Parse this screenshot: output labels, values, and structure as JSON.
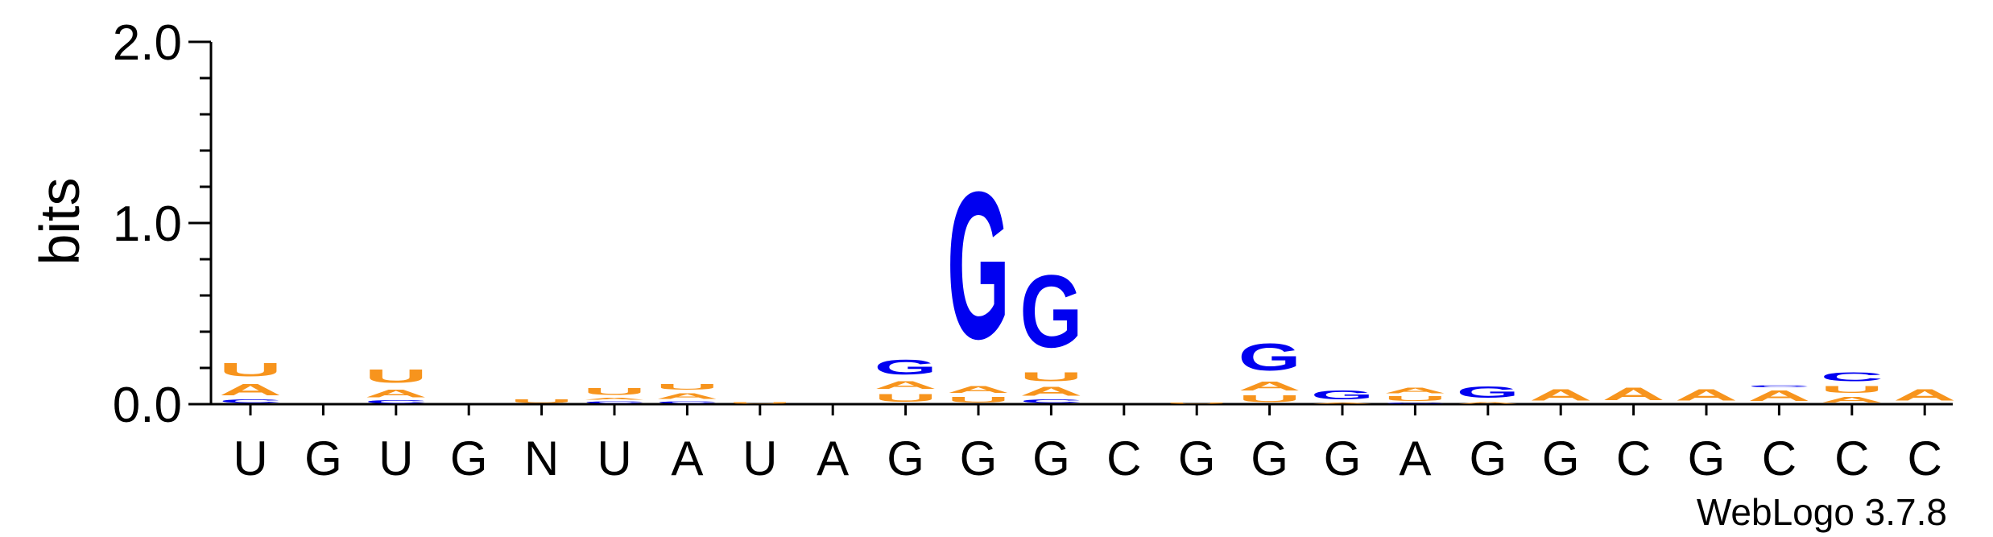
{
  "chart_data": {
    "type": "sequence-logo",
    "ylabel": "bits",
    "ylim": [
      0,
      2.0
    ],
    "yticks": [
      "0.0",
      "1.0",
      "2.0"
    ],
    "credit": "WebLogo 3.7.8",
    "colors": {
      "A": "#f7941d",
      "U": "#f7941d",
      "G": "#0000f0",
      "C": "#0000f0"
    },
    "positions": [
      {
        "label": "U",
        "stack": [
          {
            "base": "C",
            "bits": 0.03
          },
          {
            "base": "A",
            "bits": 0.1
          },
          {
            "base": "U",
            "bits": 0.12
          }
        ]
      },
      {
        "label": "G",
        "stack": []
      },
      {
        "label": "U",
        "stack": [
          {
            "base": "C",
            "bits": 0.025
          },
          {
            "base": "A",
            "bits": 0.07
          },
          {
            "base": "U",
            "bits": 0.12
          }
        ]
      },
      {
        "label": "G",
        "stack": []
      },
      {
        "label": "N",
        "stack": [
          {
            "base": "U",
            "bits": 0.03
          }
        ]
      },
      {
        "label": "U",
        "stack": [
          {
            "base": "C",
            "bits": 0.02
          },
          {
            "base": "A",
            "bits": 0.02
          },
          {
            "base": "U",
            "bits": 0.06
          }
        ]
      },
      {
        "label": "A",
        "stack": [
          {
            "base": "C",
            "bits": 0.02
          },
          {
            "base": "A",
            "bits": 0.05
          },
          {
            "base": "U",
            "bits": 0.05
          }
        ]
      },
      {
        "label": "U",
        "stack": [
          {
            "base": "U",
            "bits": 0.015
          }
        ]
      },
      {
        "label": "A",
        "stack": []
      },
      {
        "label": "G",
        "stack": [
          {
            "base": "U",
            "bits": 0.07
          },
          {
            "base": "A",
            "bits": 0.07
          },
          {
            "base": "G",
            "bits": 0.13
          }
        ]
      },
      {
        "label": "G",
        "stack": [
          {
            "base": "U",
            "bits": 0.05
          },
          {
            "base": "A",
            "bits": 0.06
          },
          {
            "base": "G",
            "bits": 1.3
          }
        ]
      },
      {
        "label": "G",
        "stack": [
          {
            "base": "C",
            "bits": 0.03
          },
          {
            "base": "A",
            "bits": 0.08
          },
          {
            "base": "U",
            "bits": 0.08
          },
          {
            "base": "G",
            "bits": 0.64
          }
        ]
      },
      {
        "label": "C",
        "stack": []
      },
      {
        "label": "G",
        "stack": [
          {
            "base": "U",
            "bits": 0.01
          }
        ]
      },
      {
        "label": "G",
        "stack": [
          {
            "base": "U",
            "bits": 0.06
          },
          {
            "base": "A",
            "bits": 0.08
          },
          {
            "base": "G",
            "bits": 0.24
          }
        ]
      },
      {
        "label": "G",
        "stack": [
          {
            "base": "A",
            "bits": 0.01
          },
          {
            "base": "G",
            "bits": 0.08
          }
        ]
      },
      {
        "label": "A",
        "stack": [
          {
            "base": "C",
            "bits": 0.01
          },
          {
            "base": "U",
            "bits": 0.04
          },
          {
            "base": "A",
            "bits": 0.05
          }
        ]
      },
      {
        "label": "G",
        "stack": [
          {
            "base": "A",
            "bits": 0.015
          },
          {
            "base": "G",
            "bits": 0.1
          }
        ]
      },
      {
        "label": "G",
        "stack": [
          {
            "base": "A",
            "bits": 0.1
          }
        ]
      },
      {
        "label": "C",
        "stack": [
          {
            "base": "A",
            "bits": 0.11
          }
        ]
      },
      {
        "label": "G",
        "stack": [
          {
            "base": "A",
            "bits": 0.1
          }
        ]
      },
      {
        "label": "C",
        "stack": [
          {
            "base": "A",
            "bits": 0.09
          },
          {
            "base": "C",
            "bits": 0.02
          }
        ]
      },
      {
        "label": "C",
        "stack": [
          {
            "base": "A",
            "bits": 0.05
          },
          {
            "base": "U",
            "bits": 0.06
          },
          {
            "base": "C",
            "bits": 0.08
          }
        ]
      },
      {
        "label": "C",
        "stack": [
          {
            "base": "A",
            "bits": 0.1
          }
        ]
      }
    ]
  }
}
